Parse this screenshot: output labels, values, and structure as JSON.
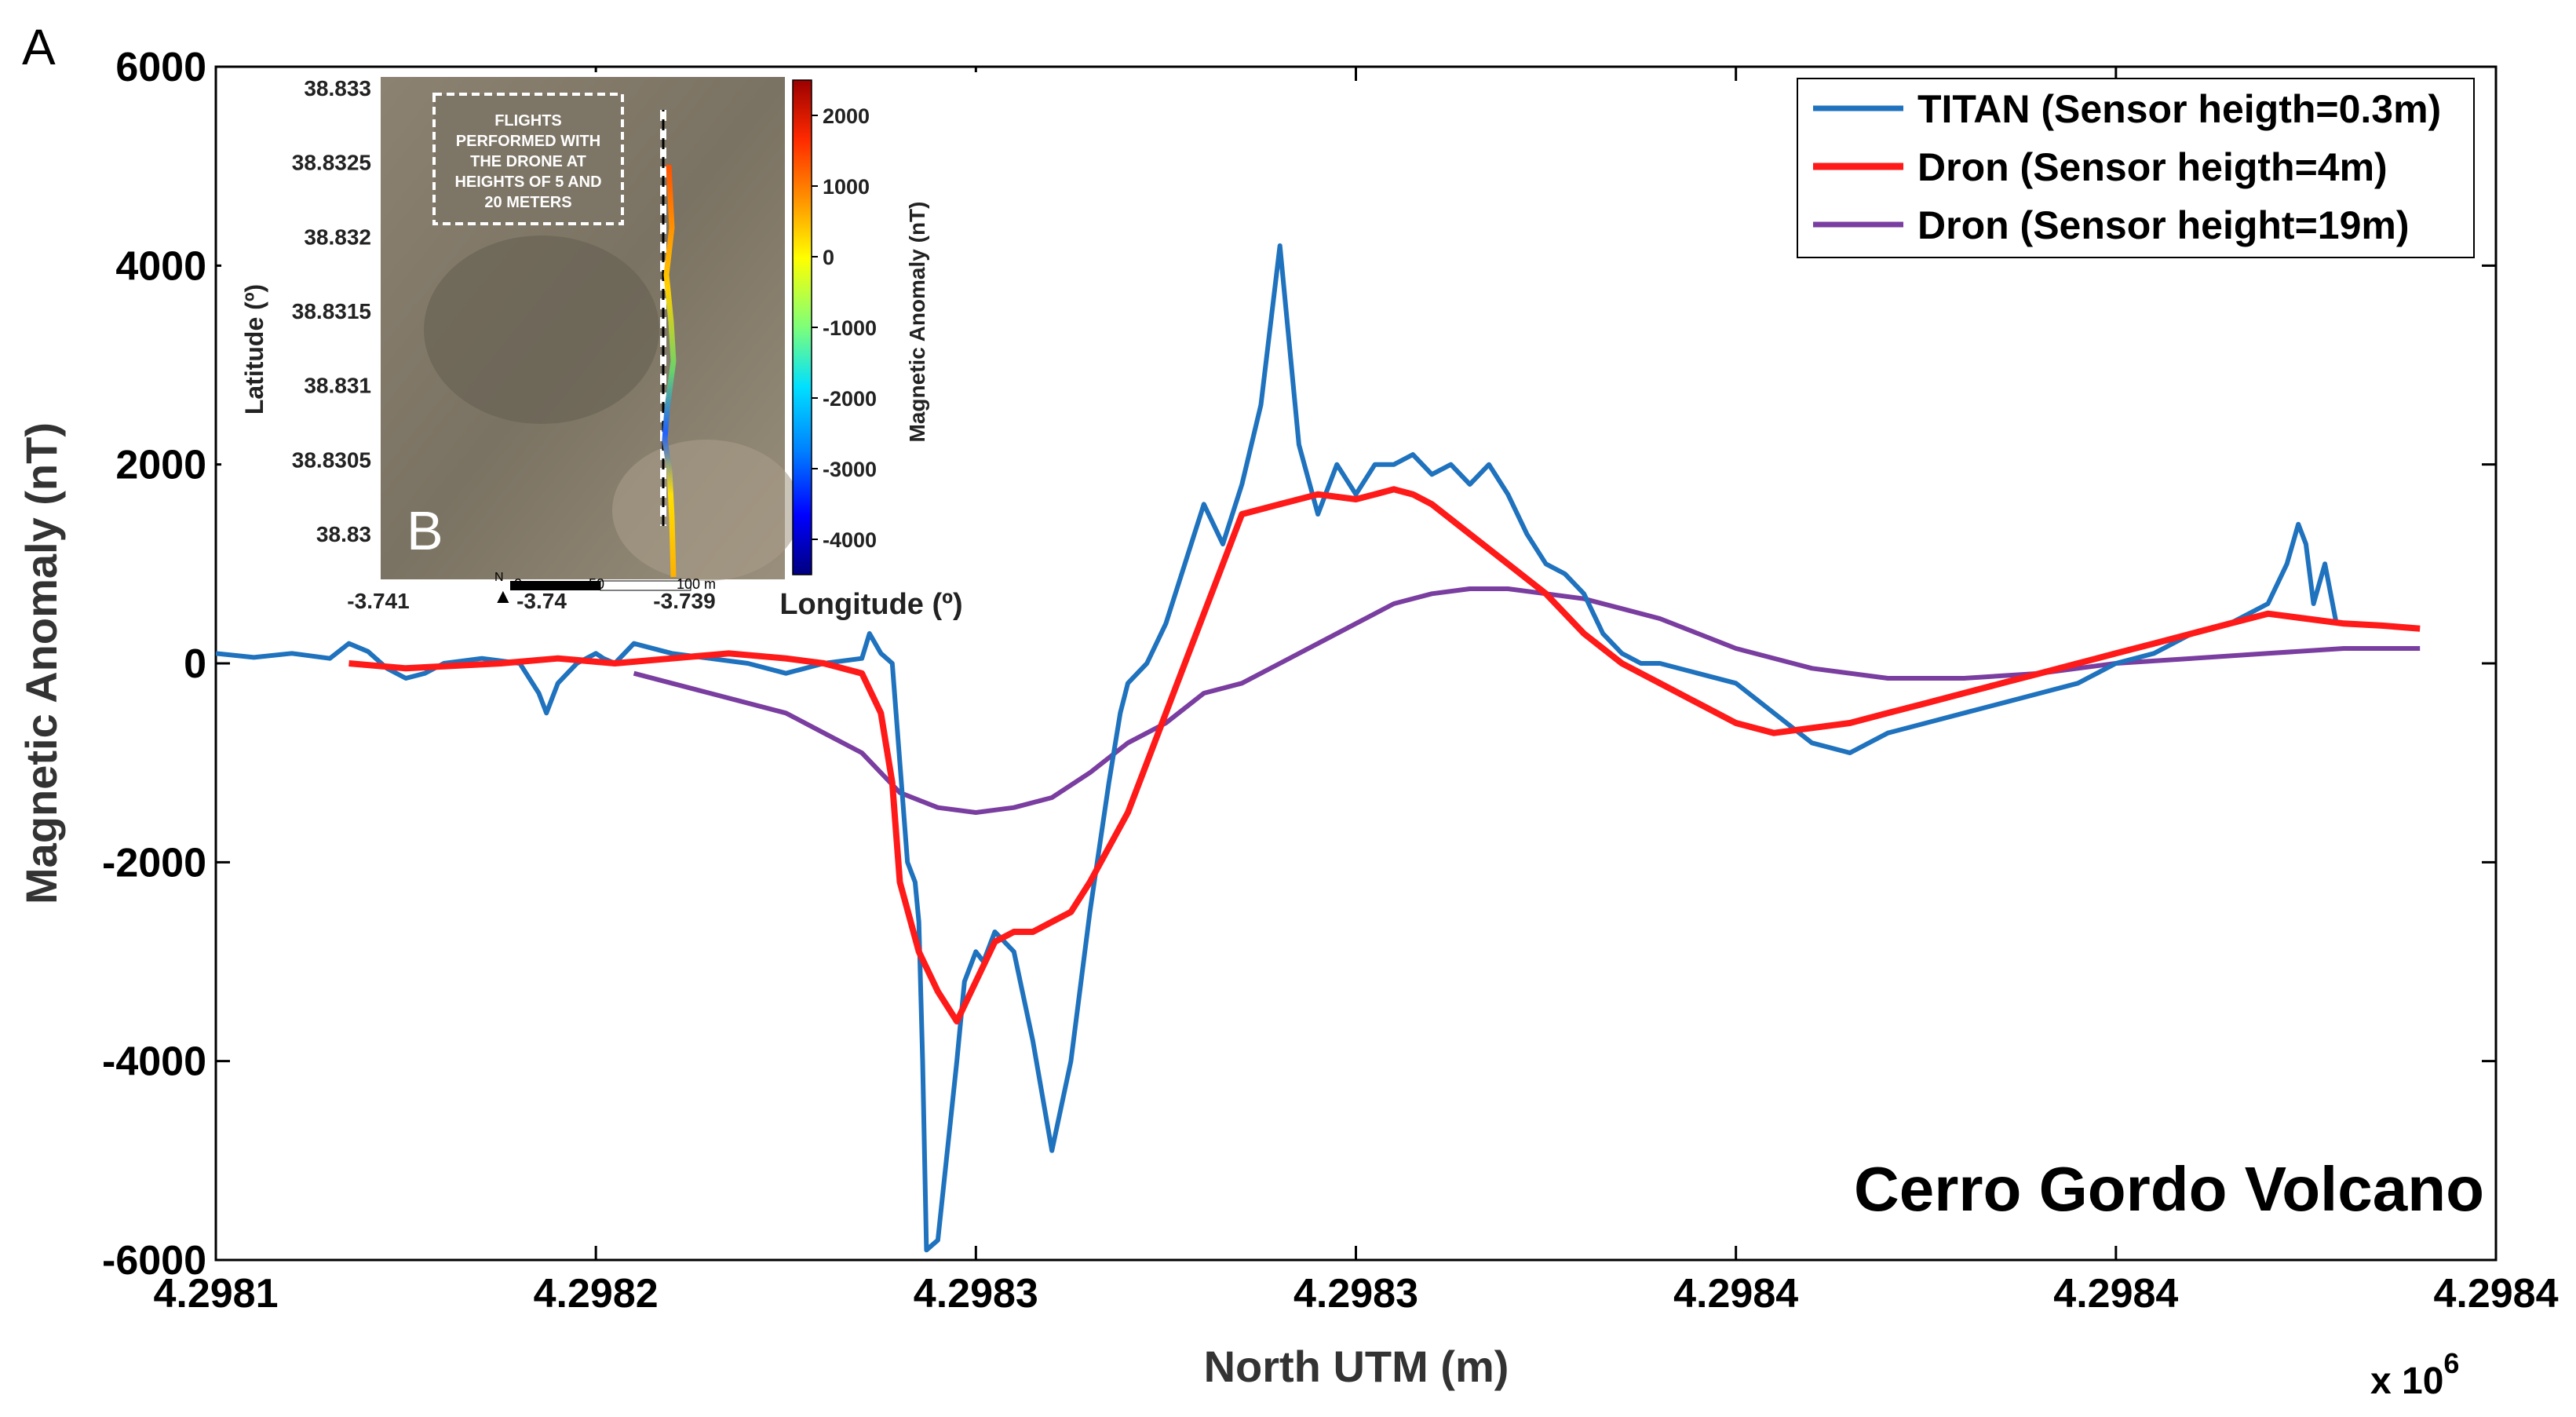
{
  "chart_data": {
    "type": "line",
    "panel_label": "A",
    "title": "",
    "xlabel": "North UTM (m)",
    "ylabel": "Magnetic Anomaly (nT)",
    "x_multiplier": "x 10",
    "x_multiplier_exp": "6",
    "xlim": [
      0,
      6
    ],
    "ylim": [
      -6000,
      6000
    ],
    "x_tick_labels": [
      "4.2981",
      "4.2982",
      "4.2983",
      "4.2983",
      "4.2984",
      "4.2984",
      "4.2984"
    ],
    "y_ticks": [
      -6000,
      -4000,
      -2000,
      0,
      2000,
      4000,
      6000
    ],
    "y_tick_labels": [
      "-6000",
      "-4000",
      "-2000",
      "0",
      "2000",
      "4000",
      "6000"
    ],
    "annotation": "Cerro Gordo Volcano",
    "legend_position": "top-right",
    "series": [
      {
        "name": "TITAN (Sensor heigth=0.3m)",
        "color": "#1f72bd",
        "x": [
          0.0,
          0.1,
          0.2,
          0.3,
          0.35,
          0.4,
          0.45,
          0.5,
          0.55,
          0.6,
          0.7,
          0.8,
          0.85,
          0.87,
          0.9,
          0.95,
          1.0,
          1.02,
          1.05,
          1.1,
          1.2,
          1.3,
          1.4,
          1.5,
          1.6,
          1.7,
          1.72,
          1.75,
          1.78,
          1.8,
          1.82,
          1.84,
          1.85,
          1.86,
          1.87,
          1.9,
          1.95,
          1.97,
          2.0,
          2.02,
          2.05,
          2.1,
          2.15,
          2.2,
          2.25,
          2.3,
          2.35,
          2.38,
          2.4,
          2.45,
          2.5,
          2.6,
          2.65,
          2.7,
          2.75,
          2.8,
          2.85,
          2.9,
          2.95,
          3.0,
          3.05,
          3.1,
          3.15,
          3.2,
          3.25,
          3.3,
          3.35,
          3.4,
          3.45,
          3.5,
          3.55,
          3.6,
          3.65,
          3.7,
          3.75,
          3.8,
          3.9,
          4.0,
          4.1,
          4.2,
          4.3,
          4.4,
          4.5,
          4.6,
          4.7,
          4.8,
          4.9,
          5.0,
          5.1,
          5.2,
          5.3,
          5.4,
          5.45,
          5.48,
          5.5,
          5.52,
          5.55,
          5.58
        ],
        "values": [
          100,
          60,
          100,
          50,
          200,
          120,
          -50,
          -150,
          -100,
          0,
          50,
          0,
          -300,
          -500,
          -200,
          0,
          100,
          50,
          0,
          200,
          100,
          50,
          0,
          -100,
          0,
          50,
          300,
          100,
          0,
          -1000,
          -2000,
          -2200,
          -2600,
          -4000,
          -5900,
          -5800,
          -4000,
          -3200,
          -2900,
          -3000,
          -2700,
          -2900,
          -3800,
          -4900,
          -4000,
          -2500,
          -1200,
          -500,
          -200,
          0,
          400,
          1600,
          1200,
          1800,
          2600,
          4200,
          2200,
          1500,
          2000,
          1700,
          2000,
          2000,
          2100,
          1900,
          2000,
          1800,
          2000,
          1700,
          1300,
          1000,
          900,
          700,
          300,
          100,
          0,
          0,
          -100,
          -200,
          -500,
          -800,
          -900,
          -700,
          -600,
          -500,
          -400,
          -300,
          -200,
          0,
          100,
          300,
          400,
          600,
          1000,
          1400,
          1200,
          600,
          1000,
          400
        ]
      },
      {
        "name": "Dron (Sensor heigth=4m)",
        "color": "#ff1a1a",
        "x": [
          0.35,
          0.5,
          0.6,
          0.75,
          0.9,
          1.05,
          1.2,
          1.35,
          1.5,
          1.6,
          1.7,
          1.75,
          1.78,
          1.8,
          1.85,
          1.9,
          1.95,
          2.0,
          2.05,
          2.1,
          2.15,
          2.2,
          2.25,
          2.3,
          2.4,
          2.5,
          2.6,
          2.7,
          2.8,
          2.9,
          3.0,
          3.05,
          3.1,
          3.15,
          3.2,
          3.3,
          3.4,
          3.5,
          3.6,
          3.7,
          3.8,
          3.9,
          4.0,
          4.1,
          4.2,
          4.3,
          4.4,
          4.5,
          4.6,
          4.7,
          4.8,
          4.9,
          5.0,
          5.1,
          5.2,
          5.3,
          5.4,
          5.5,
          5.6,
          5.7,
          5.8
        ],
        "values": [
          0,
          -50,
          -30,
          0,
          50,
          0,
          50,
          100,
          50,
          0,
          -100,
          -500,
          -1200,
          -2200,
          -2900,
          -3300,
          -3600,
          -3200,
          -2800,
          -2700,
          -2700,
          -2600,
          -2500,
          -2200,
          -1500,
          -500,
          500,
          1500,
          1600,
          1700,
          1650,
          1700,
          1750,
          1700,
          1600,
          1300,
          1000,
          700,
          300,
          0,
          -200,
          -400,
          -600,
          -700,
          -650,
          -600,
          -500,
          -400,
          -300,
          -200,
          -100,
          0,
          100,
          200,
          300,
          400,
          500,
          450,
          400,
          380,
          350
        ]
      },
      {
        "name": "Dron (Sensor height=19m)",
        "color": "#7a3da0",
        "x": [
          1.1,
          1.3,
          1.5,
          1.6,
          1.7,
          1.75,
          1.8,
          1.9,
          2.0,
          2.1,
          2.2,
          2.3,
          2.4,
          2.5,
          2.6,
          2.7,
          2.8,
          2.9,
          3.0,
          3.1,
          3.2,
          3.3,
          3.4,
          3.5,
          3.6,
          3.7,
          3.8,
          3.9,
          4.0,
          4.2,
          4.4,
          4.6,
          4.8,
          5.0,
          5.2,
          5.4,
          5.6,
          5.8
        ],
        "values": [
          -100,
          -300,
          -500,
          -700,
          -900,
          -1100,
          -1300,
          -1450,
          -1500,
          -1450,
          -1350,
          -1100,
          -800,
          -600,
          -300,
          -200,
          0,
          200,
          400,
          600,
          700,
          750,
          750,
          700,
          650,
          550,
          450,
          300,
          150,
          -50,
          -150,
          -150,
          -100,
          0,
          50,
          100,
          150,
          150
        ]
      }
    ],
    "inset": {
      "panel_label": "B",
      "box_text": [
        "FLIGHTS",
        "PERFORMED WITH",
        "THE DRONE AT",
        "HEIGHTS OF 5 AND",
        "20 METERS"
      ],
      "ylabel": "Latitude (º)",
      "xlabel": "Longitude (º)",
      "lat_ticks": [
        "38.833",
        "38.8325",
        "38.832",
        "38.8315",
        "38.831",
        "38.8305",
        "38.83"
      ],
      "lon_ticks": [
        "-3.741",
        "-3.74",
        "-3.739"
      ],
      "scale_labels": [
        "0",
        "50",
        "100 m"
      ],
      "north_label": "N",
      "colorbar_label": "Magnetic Anomaly (nT)",
      "colorbar_range": [
        -4500,
        2500
      ],
      "colorbar_ticks": [
        "2000",
        "1000",
        "0",
        "-1000",
        "-2000",
        "-3000",
        "-4000"
      ],
      "colorbar_colors": [
        "#9b0000",
        "#ff2a00",
        "#ff9a00",
        "#ffff00",
        "#7dff7a",
        "#00e0ff",
        "#0080ff",
        "#0000ff",
        "#00007f"
      ]
    }
  }
}
